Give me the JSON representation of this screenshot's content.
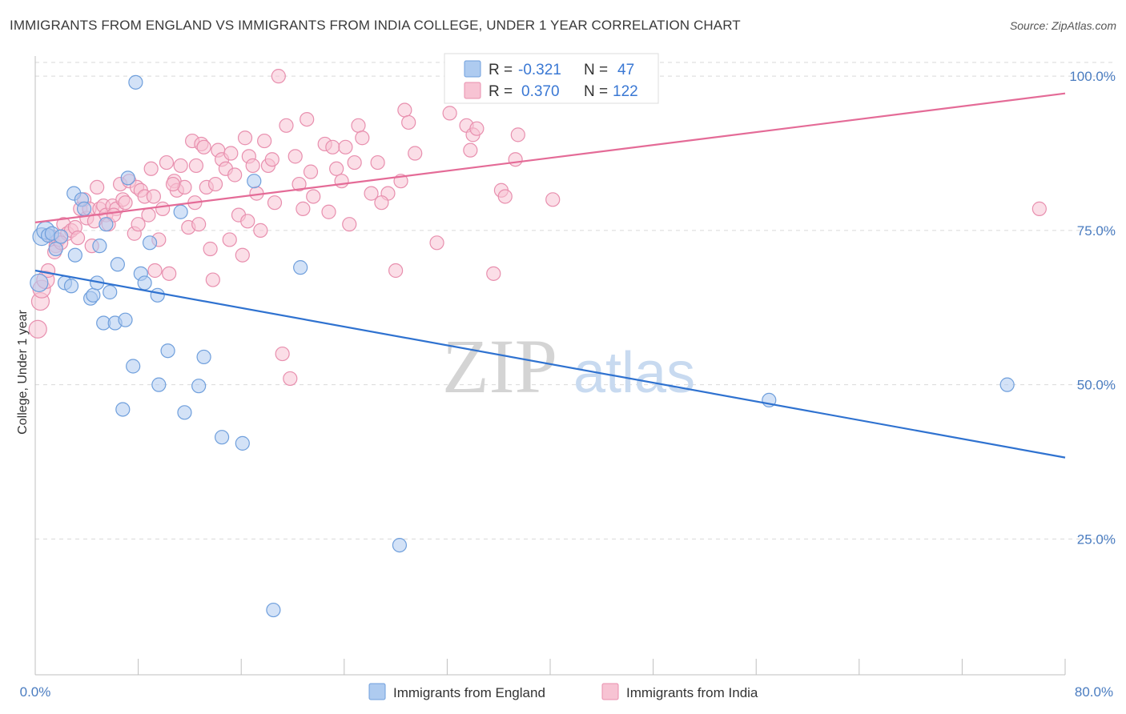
{
  "title": "IMMIGRANTS FROM ENGLAND VS IMMIGRANTS FROM INDIA COLLEGE, UNDER 1 YEAR CORRELATION CHART",
  "source": "Source: ZipAtlas.com",
  "watermark": {
    "zip": "ZIP",
    "atlas": "atlas"
  },
  "stats": {
    "r_label": "R =",
    "n_label": "N =",
    "england": {
      "r": "-0.321",
      "n": "47"
    },
    "india": {
      "r": "0.370",
      "n": "122"
    }
  },
  "colors": {
    "england_fill": "#aecbf0",
    "england_stroke": "#6f9fdc",
    "england_line": "#2f72d0",
    "india_fill": "#f7c3d3",
    "india_stroke": "#e88fae",
    "india_line": "#e46b97",
    "grid": "#d9d9d9",
    "tick_label": "#4a7cc0"
  },
  "chart_data": {
    "type": "scatter",
    "title": "IMMIGRANTS FROM ENGLAND VS IMMIGRANTS FROM INDIA COLLEGE, UNDER 1 YEAR CORRELATION CHART",
    "xlabel": "",
    "ylabel": "College, Under 1 year",
    "xlim": [
      0,
      80
    ],
    "ylim": [
      3,
      103
    ],
    "x_tick_labels": [
      "0.0%",
      "80.0%"
    ],
    "y_ticks": [
      25,
      50,
      75,
      100
    ],
    "y_tick_labels": [
      "25.0%",
      "50.0%",
      "75.0%",
      "100.0%"
    ],
    "grid": true,
    "legend_position": "bottom-center",
    "series": [
      {
        "name": "Immigrants from England",
        "trend": {
          "x": [
            0,
            80
          ],
          "y": [
            68.5,
            38.2
          ]
        },
        "points": [
          [
            0.3,
            66.5
          ],
          [
            0.5,
            74.0
          ],
          [
            0.8,
            75.0
          ],
          [
            1.0,
            74.2
          ],
          [
            1.3,
            74.5
          ],
          [
            1.6,
            72.0
          ],
          [
            2.0,
            74.0
          ],
          [
            2.3,
            66.5
          ],
          [
            2.8,
            66.0
          ],
          [
            3.1,
            71.0
          ],
          [
            3.0,
            81.0
          ],
          [
            3.6,
            80.0
          ],
          [
            3.8,
            78.5
          ],
          [
            4.3,
            64.0
          ],
          [
            4.5,
            64.5
          ],
          [
            4.8,
            66.5
          ],
          [
            5.0,
            72.5
          ],
          [
            5.3,
            60.0
          ],
          [
            5.5,
            76.0
          ],
          [
            5.8,
            65.0
          ],
          [
            6.2,
            60.0
          ],
          [
            6.4,
            69.5
          ],
          [
            6.8,
            46.0
          ],
          [
            7.0,
            60.5
          ],
          [
            7.2,
            83.5
          ],
          [
            7.6,
            53.0
          ],
          [
            7.8,
            99.0
          ],
          [
            8.2,
            68.0
          ],
          [
            8.5,
            66.5
          ],
          [
            8.9,
            73.0
          ],
          [
            9.5,
            64.5
          ],
          [
            9.6,
            50.0
          ],
          [
            10.3,
            55.5
          ],
          [
            11.3,
            78.0
          ],
          [
            11.6,
            45.5
          ],
          [
            12.7,
            49.8
          ],
          [
            13.1,
            54.5
          ],
          [
            14.5,
            41.5
          ],
          [
            16.1,
            40.5
          ],
          [
            17.0,
            83.0
          ],
          [
            18.5,
            13.5
          ],
          [
            20.6,
            69.0
          ],
          [
            28.3,
            24.0
          ],
          [
            33.0,
            100.0
          ],
          [
            57.0,
            47.5
          ],
          [
            75.5,
            50.0
          ]
        ]
      },
      {
        "name": "Immigrants from India",
        "trend": {
          "x": [
            0,
            80
          ],
          "y": [
            76.3,
            97.2
          ]
        },
        "points": [
          [
            0.2,
            59.0
          ],
          [
            0.4,
            63.5
          ],
          [
            0.5,
            65.5
          ],
          [
            0.8,
            67.0
          ],
          [
            1.0,
            68.5
          ],
          [
            1.3,
            74.0
          ],
          [
            1.6,
            72.5
          ],
          [
            1.8,
            73.5
          ],
          [
            2.2,
            76.0
          ],
          [
            2.5,
            74.5
          ],
          [
            2.8,
            75.0
          ],
          [
            3.1,
            75.5
          ],
          [
            3.3,
            73.8
          ],
          [
            3.5,
            78.5
          ],
          [
            3.8,
            80.0
          ],
          [
            4.0,
            77.0
          ],
          [
            4.2,
            78.5
          ],
          [
            4.6,
            76.5
          ],
          [
            4.8,
            82.0
          ],
          [
            5.0,
            78.5
          ],
          [
            5.3,
            79.0
          ],
          [
            5.5,
            77.5
          ],
          [
            5.7,
            76.0
          ],
          [
            6.0,
            79.0
          ],
          [
            6.3,
            78.5
          ],
          [
            6.6,
            82.5
          ],
          [
            6.8,
            80.0
          ],
          [
            7.0,
            79.5
          ],
          [
            7.3,
            83.0
          ],
          [
            7.7,
            74.5
          ],
          [
            7.9,
            82.0
          ],
          [
            8.2,
            81.5
          ],
          [
            8.5,
            80.5
          ],
          [
            8.8,
            77.5
          ],
          [
            9.0,
            85.0
          ],
          [
            9.3,
            68.5
          ],
          [
            9.6,
            73.5
          ],
          [
            9.9,
            78.5
          ],
          [
            10.2,
            86.0
          ],
          [
            10.4,
            68.0
          ],
          [
            10.8,
            83.0
          ],
          [
            11.0,
            81.5
          ],
          [
            11.3,
            85.5
          ],
          [
            11.6,
            82.0
          ],
          [
            11.9,
            75.5
          ],
          [
            12.2,
            89.5
          ],
          [
            12.5,
            85.5
          ],
          [
            12.7,
            76.0
          ],
          [
            12.9,
            89.0
          ],
          [
            13.3,
            82.0
          ],
          [
            13.6,
            72.0
          ],
          [
            13.8,
            67.0
          ],
          [
            14.0,
            82.5
          ],
          [
            14.2,
            88.0
          ],
          [
            14.5,
            86.5
          ],
          [
            14.8,
            85.0
          ],
          [
            15.2,
            87.5
          ],
          [
            15.5,
            84.0
          ],
          [
            15.8,
            77.5
          ],
          [
            16.1,
            71.0
          ],
          [
            16.3,
            90.0
          ],
          [
            16.6,
            87.0
          ],
          [
            16.9,
            85.5
          ],
          [
            17.2,
            81.0
          ],
          [
            17.5,
            75.0
          ],
          [
            17.8,
            89.5
          ],
          [
            18.1,
            85.5
          ],
          [
            18.4,
            86.5
          ],
          [
            18.6,
            79.5
          ],
          [
            18.9,
            100.0
          ],
          [
            19.2,
            55.0
          ],
          [
            19.5,
            92.0
          ],
          [
            19.8,
            51.0
          ],
          [
            20.2,
            87.0
          ],
          [
            20.5,
            82.5
          ],
          [
            20.8,
            78.5
          ],
          [
            21.1,
            93.0
          ],
          [
            21.4,
            84.5
          ],
          [
            22.5,
            89.0
          ],
          [
            22.8,
            78.0
          ],
          [
            23.1,
            88.5
          ],
          [
            23.4,
            85.0
          ],
          [
            23.8,
            83.0
          ],
          [
            24.1,
            88.5
          ],
          [
            24.4,
            76.0
          ],
          [
            24.8,
            86.0
          ],
          [
            25.1,
            92.0
          ],
          [
            25.4,
            90.0
          ],
          [
            26.1,
            81.0
          ],
          [
            26.6,
            86.0
          ],
          [
            27.4,
            81.0
          ],
          [
            28.0,
            68.5
          ],
          [
            28.4,
            83.0
          ],
          [
            28.7,
            94.5
          ],
          [
            29.0,
            92.5
          ],
          [
            29.5,
            87.5
          ],
          [
            31.2,
            73.0
          ],
          [
            32.2,
            94.0
          ],
          [
            33.5,
            92.0
          ],
          [
            33.8,
            88.0
          ],
          [
            34.0,
            90.5
          ],
          [
            34.3,
            91.5
          ],
          [
            35.6,
            68.0
          ],
          [
            36.2,
            81.5
          ],
          [
            36.5,
            80.5
          ],
          [
            37.3,
            86.5
          ],
          [
            37.5,
            90.5
          ],
          [
            40.2,
            80.0
          ],
          [
            78.0,
            78.5
          ],
          [
            1.5,
            71.5
          ],
          [
            2.0,
            73.0
          ],
          [
            6.1,
            77.5
          ],
          [
            9.2,
            80.5
          ],
          [
            15.1,
            73.5
          ],
          [
            21.6,
            80.5
          ],
          [
            26.9,
            79.5
          ],
          [
            13.1,
            88.5
          ],
          [
            10.7,
            82.5
          ],
          [
            8.0,
            76.0
          ],
          [
            4.4,
            72.5
          ],
          [
            12.4,
            79.5
          ],
          [
            16.5,
            76.5
          ]
        ]
      }
    ]
  }
}
